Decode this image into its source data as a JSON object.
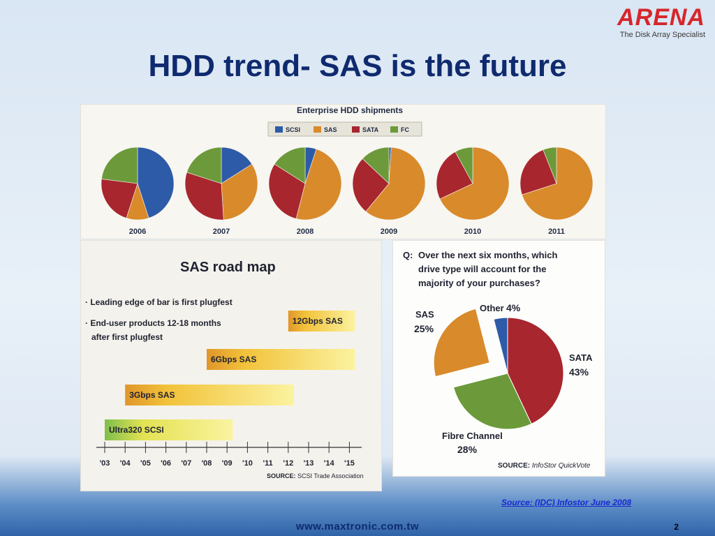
{
  "logo": {
    "word": "ARENA",
    "tagline": "The Disk Array Specialist"
  },
  "slide": {
    "title": "HDD trend- SAS is the future",
    "source": "Source: (IDC) Infostor June 2008",
    "url": "www.maxtronic.com.tw",
    "page": "2"
  },
  "colors": {
    "SCSI": "#2e5ba8",
    "SAS": "#d98a2b",
    "SATA": "#a8262e",
    "FC": "#6c9a3a"
  },
  "chart_data": [
    {
      "type": "pie",
      "title": "Enterprise HDD shipments",
      "legend": [
        "SCSI",
        "SAS",
        "SATA",
        "FC"
      ],
      "legend_position": "top",
      "series": [
        {
          "name": "2006",
          "values": {
            "SCSI": 45,
            "SAS": 10,
            "SATA": 22,
            "FC": 23
          }
        },
        {
          "name": "2007",
          "values": {
            "SCSI": 16,
            "SAS": 33,
            "SATA": 31,
            "FC": 20
          }
        },
        {
          "name": "2008",
          "values": {
            "SCSI": 5,
            "SAS": 49,
            "SATA": 30,
            "FC": 16
          }
        },
        {
          "name": "2009",
          "values": {
            "SCSI": 1,
            "SAS": 60,
            "SATA": 26,
            "FC": 13
          }
        },
        {
          "name": "2010",
          "values": {
            "SCSI": 0,
            "SAS": 68,
            "SATA": 24,
            "FC": 8
          }
        },
        {
          "name": "2011",
          "values": {
            "SCSI": 0,
            "SAS": 70,
            "SATA": 24,
            "FC": 6
          }
        }
      ],
      "source_note": "source: IDC"
    },
    {
      "type": "bar",
      "title": "SAS road map",
      "notes": [
        "Leading edge of bar is first plugfest",
        "End-user products 12-18 months",
        "after first plugfest"
      ],
      "categories": [
        "12Gbps SAS",
        "6Gbps SAS",
        "3Gbps SAS",
        "Ultra320 SCSI"
      ],
      "start_year": [
        2012,
        2008,
        2004,
        2003
      ],
      "end_year": [
        2015,
        2015,
        2012,
        2009
      ],
      "x_ticks": [
        "'03",
        "'04",
        "'05",
        "'06",
        "'07",
        "'08",
        "'09",
        "'10",
        "'11",
        "'12",
        "'13",
        "'14",
        "'15"
      ],
      "xlim": [
        2003,
        2015
      ],
      "source_label": "SOURCE:",
      "source_text": "SCSI Trade Association"
    },
    {
      "type": "pie",
      "question_prefix": "Q:",
      "question": [
        "Over the next six months, which",
        "drive type will account for the",
        "majority of your purchases?"
      ],
      "categories": [
        "SATA",
        "Fibre Channel",
        "SAS",
        "Other"
      ],
      "values": [
        43,
        28,
        25,
        4
      ],
      "labels": [
        "43%",
        "28%",
        "25%",
        "4%"
      ],
      "colors": [
        "#a8262e",
        "#6c9a3a",
        "#d98a2b",
        "#2e5ba8"
      ],
      "source_label": "SOURCE:",
      "source_text": "InfoStor QuickVote"
    }
  ]
}
